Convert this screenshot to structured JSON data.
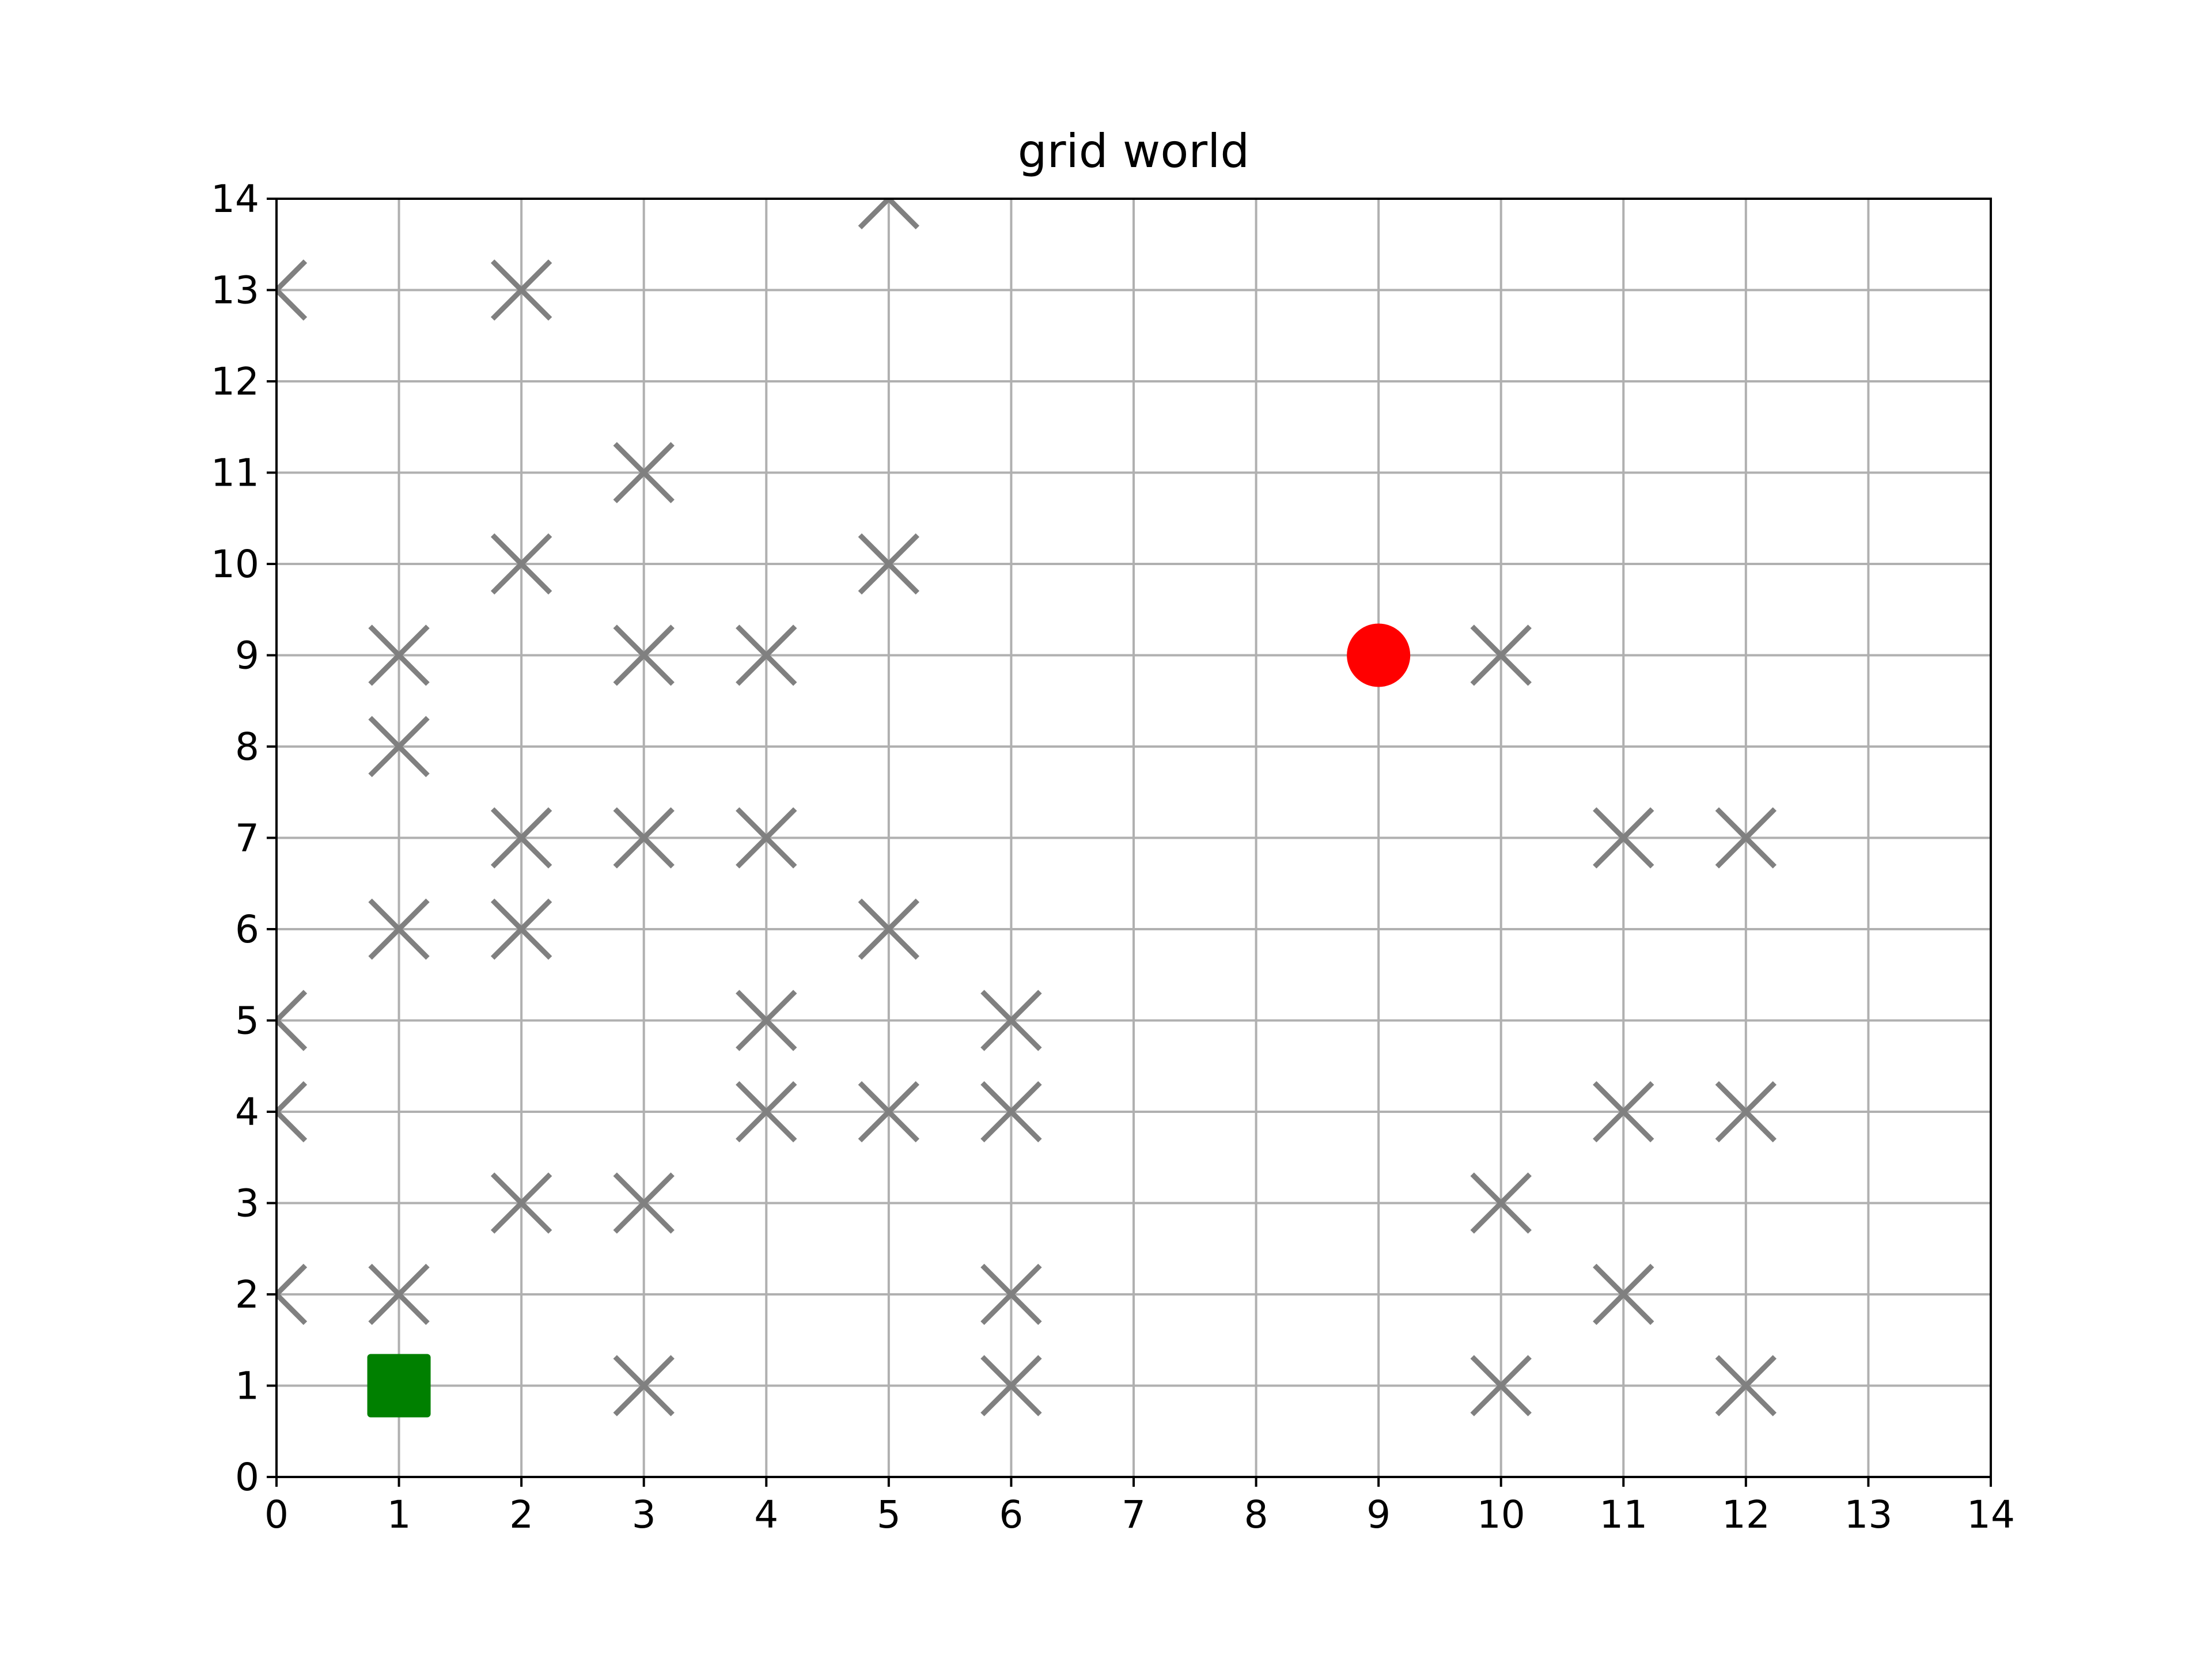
{
  "chart_data": {
    "type": "scatter",
    "title": "grid world",
    "xlabel": "",
    "ylabel": "",
    "xlim": [
      0,
      14
    ],
    "ylim": [
      0,
      14
    ],
    "x_ticks": [
      0,
      1,
      2,
      3,
      4,
      5,
      6,
      7,
      8,
      9,
      10,
      11,
      12,
      13,
      14
    ],
    "y_ticks": [
      0,
      1,
      2,
      3,
      4,
      5,
      6,
      7,
      8,
      9,
      10,
      11,
      12,
      13,
      14
    ],
    "grid": true,
    "series": [
      {
        "marker": "x",
        "color": "#808080",
        "points": [
          [
            0,
            13
          ],
          [
            2,
            13
          ],
          [
            5,
            14
          ],
          [
            3,
            11
          ],
          [
            2,
            10
          ],
          [
            5,
            10
          ],
          [
            1,
            9
          ],
          [
            3,
            9
          ],
          [
            4,
            9
          ],
          [
            10,
            9
          ],
          [
            1,
            8
          ],
          [
            2,
            7
          ],
          [
            3,
            7
          ],
          [
            4,
            7
          ],
          [
            11,
            7
          ],
          [
            12,
            7
          ],
          [
            1,
            6
          ],
          [
            2,
            6
          ],
          [
            5,
            6
          ],
          [
            0,
            5
          ],
          [
            4,
            5
          ],
          [
            6,
            5
          ],
          [
            0,
            4
          ],
          [
            4,
            4
          ],
          [
            5,
            4
          ],
          [
            6,
            4
          ],
          [
            11,
            4
          ],
          [
            12,
            4
          ],
          [
            2,
            3
          ],
          [
            3,
            3
          ],
          [
            10,
            3
          ],
          [
            0,
            2
          ],
          [
            1,
            2
          ],
          [
            6,
            2
          ],
          [
            11,
            2
          ],
          [
            3,
            1
          ],
          [
            6,
            1
          ],
          [
            10,
            1
          ],
          [
            12,
            1
          ]
        ]
      },
      {
        "marker": "circle",
        "color": "#ff0000",
        "points": [
          [
            9,
            9
          ]
        ]
      },
      {
        "marker": "square",
        "color": "#008000",
        "points": [
          [
            1,
            1
          ]
        ]
      }
    ]
  }
}
